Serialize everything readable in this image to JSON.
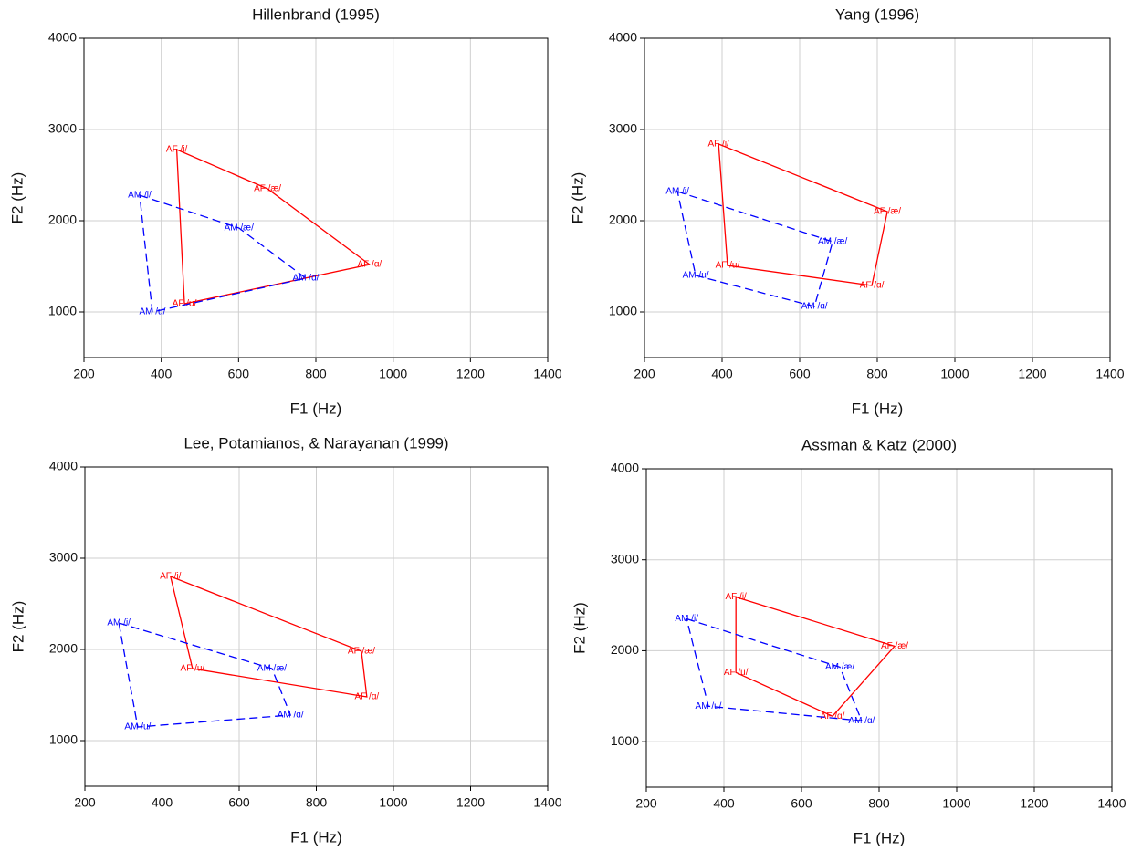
{
  "chart_data": [
    {
      "type": "line",
      "title": "Hillenbrand (1995)",
      "x_label": "F1 (Hz)",
      "y_label": "F2 (Hz)",
      "xlim": [
        200,
        1400
      ],
      "xticks": [
        200,
        400,
        600,
        800,
        1000,
        1200,
        1400
      ],
      "ylim": [
        500,
        4000
      ],
      "yticks": [
        1000,
        2000,
        3000,
        4000
      ],
      "grid": true,
      "closed": true,
      "series": [
        {
          "color": "#ff0000",
          "dashed": false,
          "labels": [
            "AF /i/",
            "AF /æ/",
            "AF /ɑ/",
            "AF /u/"
          ],
          "x": [
            440,
            675,
            939,
            460
          ],
          "values": [
            2780,
            2350,
            1520,
            1090
          ]
        },
        {
          "color": "#0000ff",
          "dashed": true,
          "labels": [
            "AM /i/",
            "AM /æ/",
            "AM /ɑ/",
            "AM /u/"
          ],
          "x": [
            344,
            601,
            774,
            377
          ],
          "values": [
            2280,
            1920,
            1370,
            1000
          ]
        }
      ]
    },
    {
      "type": "line",
      "title": "Yang (1996)",
      "x_label": "F1 (Hz)",
      "y_label": "F2 (Hz)",
      "xlim": [
        200,
        1400
      ],
      "xticks": [
        200,
        400,
        600,
        800,
        1000,
        1200,
        1400
      ],
      "ylim": [
        500,
        4000
      ],
      "yticks": [
        1000,
        2000,
        3000,
        4000
      ],
      "grid": true,
      "closed": true,
      "series": [
        {
          "color": "#ff0000",
          "dashed": false,
          "labels": [
            "AF /i/",
            "AF /æ/",
            "AF /ɑ/",
            "AF /u/"
          ],
          "x": [
            391,
            826,
            786,
            414
          ],
          "values": [
            2840,
            2100,
            1290,
            1510
          ]
        },
        {
          "color": "#0000ff",
          "dashed": true,
          "labels": [
            "AM /i/",
            "AM /æ/",
            "AM /ɑ/",
            "AM /u/"
          ],
          "x": [
            285,
            685,
            638,
            332
          ],
          "values": [
            2320,
            1770,
            1060,
            1400
          ]
        }
      ]
    },
    {
      "type": "line",
      "title": "Lee, Potamianos, & Narayanan (1999)",
      "x_label": "F1 (Hz)",
      "y_label": "F2 (Hz)",
      "xlim": [
        200,
        1400
      ],
      "xticks": [
        200,
        400,
        600,
        800,
        1000,
        1200,
        1400
      ],
      "ylim": [
        500,
        4000
      ],
      "yticks": [
        1000,
        2000,
        3000,
        4000
      ],
      "grid": true,
      "closed": true,
      "series": [
        {
          "color": "#ff0000",
          "dashed": false,
          "labels": [
            "AF /i/",
            "AF /æ/",
            "AF /ɑ/",
            "AF /u/"
          ],
          "x": [
            422,
            917,
            931,
            479
          ],
          "values": [
            2800,
            1980,
            1480,
            1790
          ]
        },
        {
          "color": "#0000ff",
          "dashed": true,
          "labels": [
            "AM /i/",
            "AM /æ/",
            "AM /ɑ/",
            "AM /u/"
          ],
          "x": [
            288,
            685,
            733,
            337
          ],
          "values": [
            2290,
            1790,
            1280,
            1150
          ]
        }
      ]
    },
    {
      "type": "line",
      "title": "Assman & Katz (2000)",
      "x_label": "F1 (Hz)",
      "y_label": "F2 (Hz)",
      "xlim": [
        200,
        1400
      ],
      "xticks": [
        200,
        400,
        600,
        800,
        1000,
        1200,
        1400
      ],
      "ylim": [
        500,
        4000
      ],
      "yticks": [
        1000,
        2000,
        3000,
        4000
      ],
      "grid": true,
      "closed": true,
      "series": [
        {
          "color": "#ff0000",
          "dashed": false,
          "labels": [
            "AF /i/",
            "AF /æ/",
            "AF /ɑ/",
            "AF /u/"
          ],
          "x": [
            431,
            840,
            680,
            431
          ],
          "values": [
            2590,
            2050,
            1280,
            1760
          ]
        },
        {
          "color": "#0000ff",
          "dashed": true,
          "labels": [
            "AM /i/",
            "AM /æ/",
            "AM /ɑ/",
            "AM /u/"
          ],
          "x": [
            304,
            699,
            755,
            360
          ],
          "values": [
            2350,
            1820,
            1230,
            1390
          ]
        }
      ]
    }
  ]
}
